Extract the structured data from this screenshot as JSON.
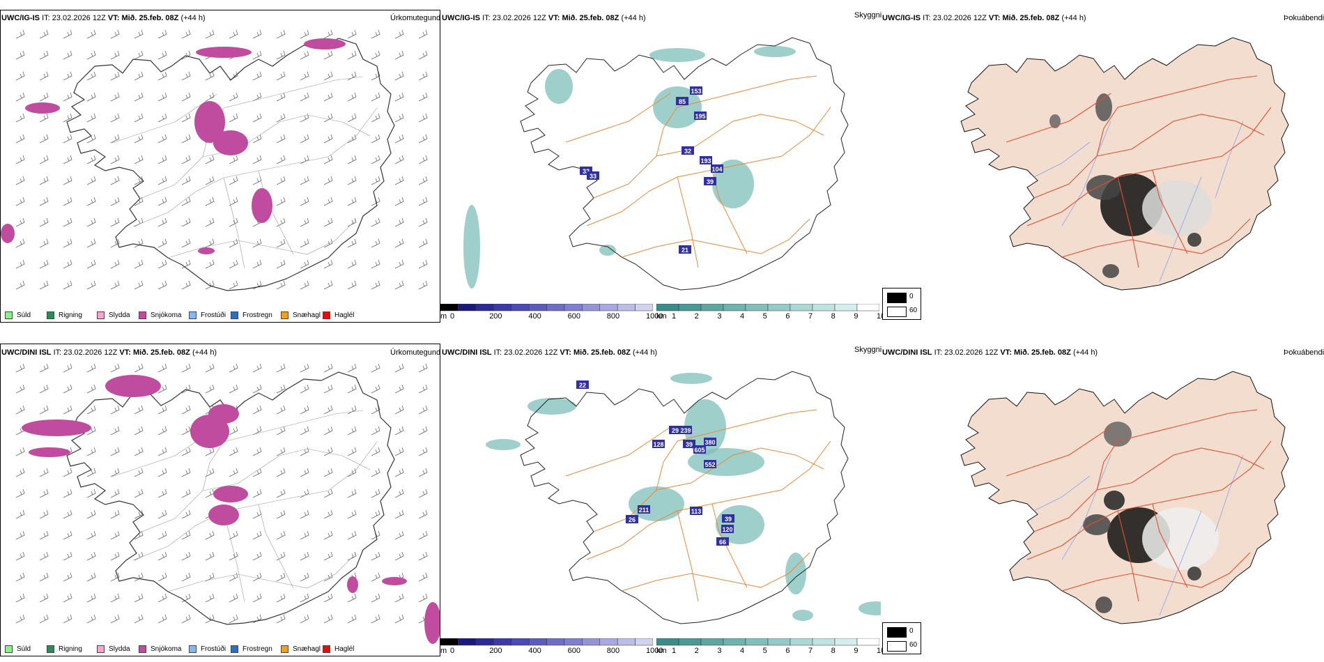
{
  "rows": [
    {
      "model": "UWC/IG-IS",
      "it_label": "IT:",
      "it_value": "23.02.2026 12Z",
      "vt_label": "VT:",
      "vt_value": "Mið. 25.feb. 08Z",
      "lead": "(+44 h)"
    },
    {
      "model": "UWC/DINI ISL",
      "it_label": "IT:",
      "it_value": "23.02.2026 12Z",
      "vt_label": "VT:",
      "vt_value": "Mið. 25.feb. 08Z",
      "lead": "(+44 h)"
    }
  ],
  "panel_titles": {
    "precip_type": "Úrkomutegund",
    "visibility": "Skyggni",
    "fog": "Þokuábendi"
  },
  "precip_legend": [
    {
      "label": "Súld",
      "color": "#90ee90"
    },
    {
      "label": "Rigning",
      "color": "#2e8b57"
    },
    {
      "label": "Slydda",
      "color": "#f4a6d0"
    },
    {
      "label": "Snjókoma",
      "color": "#c04ca0"
    },
    {
      "label": "Frostúði",
      "color": "#87b6f0"
    },
    {
      "label": "Frostregn",
      "color": "#2f6fc0"
    },
    {
      "label": "Snæhagl",
      "color": "#f0a020"
    },
    {
      "label": "Haglél",
      "color": "#e01010"
    }
  ],
  "colorbar_m": {
    "unit": "m",
    "ticks": [
      "0",
      "200",
      "400",
      "600",
      "800",
      "1000"
    ],
    "colors": [
      "#000000",
      "#1a1a7a",
      "#2b2b95",
      "#3a3aa8",
      "#4b4bb5",
      "#5c5cbd",
      "#6e6ec6",
      "#8080ce",
      "#9595d6",
      "#a9a9de",
      "#bdbde6",
      "#d2d2ee"
    ]
  },
  "colorbar_km": {
    "unit": "km",
    "ticks": [
      "1",
      "2",
      "3",
      "4",
      "5",
      "6",
      "7",
      "8",
      "9",
      "10"
    ],
    "colors": [
      "#3a8d88",
      "#4b9994",
      "#5da6a1",
      "#70b2ad",
      "#83bfba",
      "#97cbc7",
      "#abd8d4",
      "#bfe3e0",
      "#d3eeec",
      "#ffffff"
    ]
  },
  "fog_legend": [
    "0",
    "60"
  ],
  "vis_labels": [
    [
      "153",
      "85",
      "195",
      "32",
      "193",
      "104",
      "39",
      "32",
      "33",
      "21"
    ],
    [
      "22",
      "29",
      "239",
      "128",
      "39",
      "380",
      "605",
      "552",
      "211",
      "113",
      "26",
      "39",
      "120",
      "66"
    ]
  ]
}
